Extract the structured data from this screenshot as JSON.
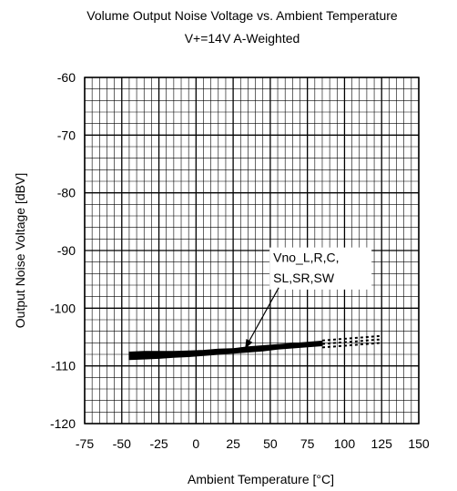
{
  "chart_data": {
    "type": "line",
    "title": "Volume  Output Noise Voltage vs. Ambient Temperature",
    "subtitle": "V+=14V A-Weighted",
    "xlabel": "Ambient Temperature [°C]",
    "ylabel": "Output Noise Voltage [dBV]",
    "xlim": [
      -75,
      150
    ],
    "ylim": [
      -120,
      -60
    ],
    "xticks": [
      "-75",
      "-50",
      "-25",
      "0",
      "25",
      "50",
      "75",
      "100",
      "125",
      "150"
    ],
    "yticks": [
      "-60",
      "-70",
      "-80",
      "-90",
      "-100",
      "-110",
      "-120"
    ],
    "grid": true,
    "annotation": {
      "lines": [
        "Vno_L,R,C,",
        "SL,SR,SW"
      ]
    },
    "series": [
      {
        "x": [
          -45,
          -35,
          -25,
          -15,
          -5,
          5,
          15,
          25,
          35,
          45,
          55,
          65,
          75,
          85
        ],
        "y_low": [
          -108.9,
          -108.8,
          -108.7,
          -108.5,
          -108.4,
          -108.2,
          -108.0,
          -107.8,
          -107.6,
          -107.4,
          -107.1,
          -106.9,
          -106.7,
          -106.5
        ],
        "y_high": [
          -107.6,
          -107.5,
          -107.5,
          -107.5,
          -107.4,
          -107.3,
          -107.1,
          -107.0,
          -106.7,
          -106.5,
          -106.3,
          -106.1,
          -105.9,
          -105.7
        ],
        "extrapolated_x": [
          85,
          95,
          105,
          115,
          125
        ],
        "extrapolated_y": [
          -106.2,
          -106.0,
          -105.8,
          -105.6,
          -105.4
        ]
      }
    ]
  }
}
